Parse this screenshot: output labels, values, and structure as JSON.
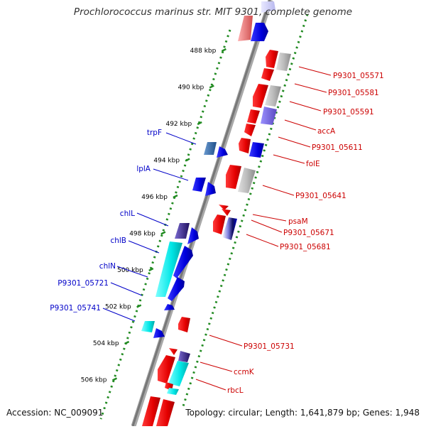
{
  "title": "Prochlorococcus marinus str. MIT 9301, complete genome",
  "footer": {
    "accession": "Accession: NC_009091",
    "summary": "Topology: circular; Length: 1,641,879 bp; Genes: 1,948"
  },
  "colors": {
    "forward_cds": "#0000e0",
    "reverse_cds": "#ee0000",
    "rna": "#00e6e6",
    "tick": "#228b22",
    "backbone": "#888888",
    "forward_label": "#0000c8",
    "reverse_label": "#cc0000",
    "kbp_label": "#000000"
  },
  "kbp_ticks": [
    {
      "label": "488 kbp",
      "kbp": 488
    },
    {
      "label": "490 kbp",
      "kbp": 490
    },
    {
      "label": "492 kbp",
      "kbp": 492
    },
    {
      "label": "494 kbp",
      "kbp": 494
    },
    {
      "label": "496 kbp",
      "kbp": 496
    },
    {
      "label": "498 kbp",
      "kbp": 498
    },
    {
      "label": "500 kbp",
      "kbp": 500
    },
    {
      "label": "502 kbp",
      "kbp": 502
    },
    {
      "label": "504 kbp",
      "kbp": 504
    },
    {
      "label": "506 kbp",
      "kbp": 506
    }
  ],
  "forward_labels": [
    "trpF",
    "lplA",
    "chlL",
    "chlB",
    "chlN",
    "P9301_05721",
    "P9301_05741"
  ],
  "reverse_labels": [
    "P9301_05571",
    "P9301_05581",
    "P9301_05591",
    "accA",
    "P9301_05611",
    "folE",
    "P9301_05641",
    "psaM",
    "P9301_05671",
    "P9301_05681",
    "P9301_05731",
    "ccmK",
    "rbcL"
  ]
}
